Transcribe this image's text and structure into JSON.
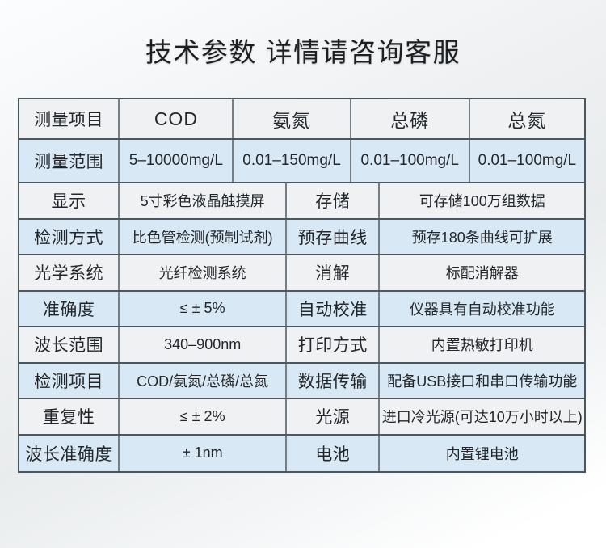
{
  "page": {
    "title": "技术参数 详情请咨询客服"
  },
  "colors": {
    "row_gray": "#eff1f3",
    "row_blue": "#d8e8f4",
    "border_dark": "#4d575e",
    "border_light": "#757e85",
    "text": "#23272b"
  },
  "table": {
    "header_row": {
      "label": "测量项目",
      "columns": [
        "COD",
        "氨氮",
        "总磷",
        "总氮"
      ]
    },
    "range_row": {
      "label": "测量范围",
      "values": [
        "5–10000mg/L",
        "0.01–150mg/L",
        "0.01–100mg/L",
        "0.01–100mg/L"
      ]
    },
    "spec_rows": [
      {
        "label_left": "显示",
        "value_left": "5寸彩色液晶触摸屏",
        "label_right": "存储",
        "value_right": "可存储100万组数据"
      },
      {
        "label_left": "检测方式",
        "value_left": "比色管检测(预制试剂)",
        "label_right": "预存曲线",
        "value_right": "预存180条曲线可扩展"
      },
      {
        "label_left": "光学系统",
        "value_left": "光纤检测系统",
        "label_right": "消解",
        "value_right": "标配消解器"
      },
      {
        "label_left": "准确度",
        "value_left": "≤ ± 5%",
        "label_right": "自动校准",
        "value_right": "仪器具有自动校准功能"
      },
      {
        "label_left": "波长范围",
        "value_left": "340–900nm",
        "label_right": "打印方式",
        "value_right": "内置热敏打印机"
      },
      {
        "label_left": "检测项目",
        "value_left": "COD/氨氮/总磷/总氮",
        "label_right": "数据传输",
        "value_right": "配备USB接口和串口传输功能"
      },
      {
        "label_left": "重复性",
        "value_left": "≤ ± 2%",
        "label_right": "光源",
        "value_right": "进口冷光源(可达10万小时以上)"
      },
      {
        "label_left": "波长准确度",
        "value_left": "± 1nm",
        "label_right": "电池",
        "value_right": "内置锂电池"
      }
    ]
  }
}
